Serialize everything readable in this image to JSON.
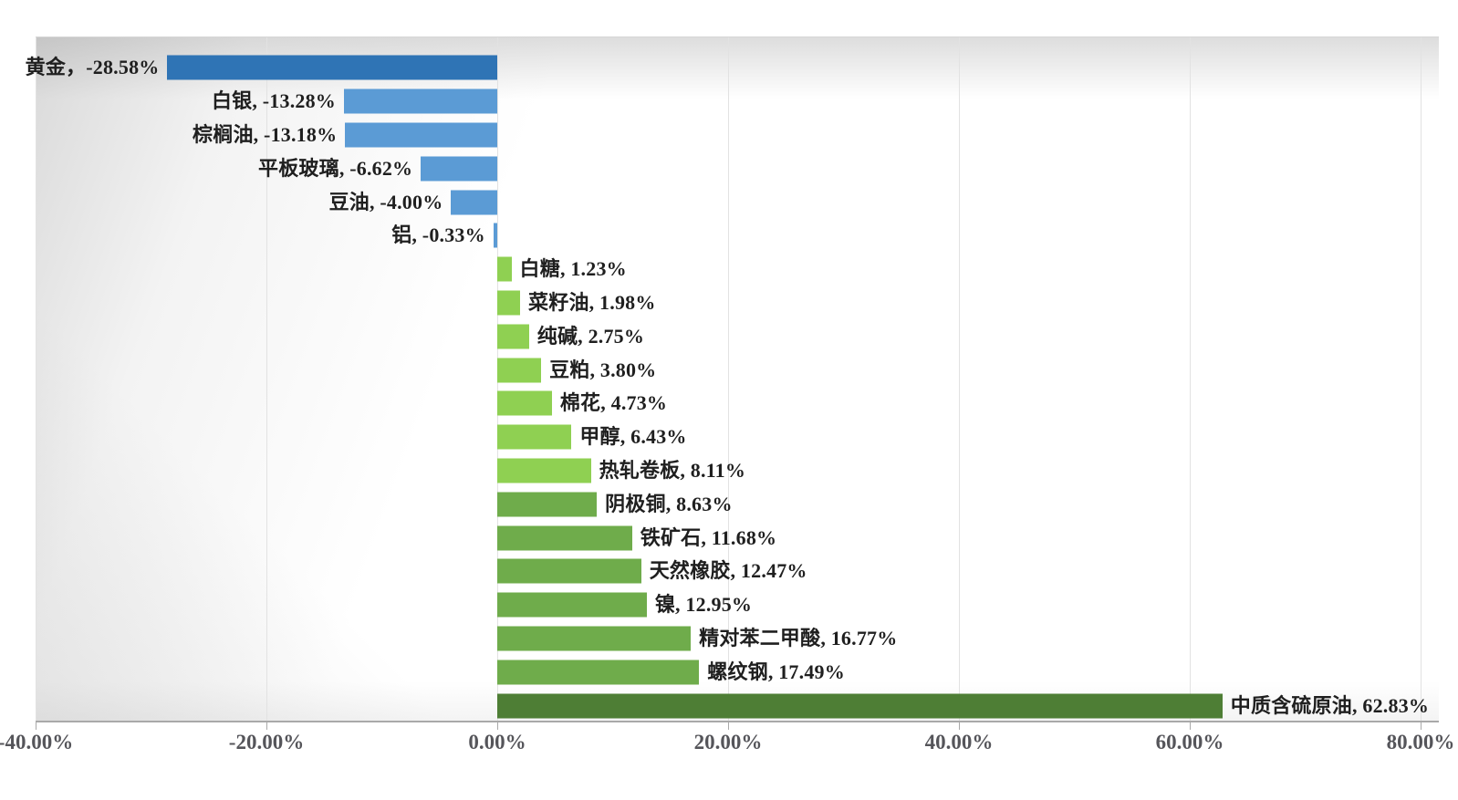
{
  "chart_data": {
    "type": "bar",
    "orientation": "horizontal",
    "title": "",
    "xlabel": "",
    "ylabel": "",
    "value_unit": "%",
    "x_axis": {
      "min": -40,
      "max": 80,
      "tick_step": 20,
      "tick_labels": [
        "-40.00%",
        "-20.00%",
        "0.00%",
        "20.00%",
        "40.00%",
        "60.00%",
        "80.00%"
      ],
      "gridlines": true
    },
    "legend": "none",
    "bars": [
      {
        "name": "黄金",
        "value": -28.58,
        "label": "黄金，-28.58%",
        "color": "#2F74B5"
      },
      {
        "name": "白银",
        "value": -13.28,
        "label": "白银, -13.28%",
        "color": "#5B9BD5"
      },
      {
        "name": "棕榈油",
        "value": -13.18,
        "label": "棕榈油, -13.18%",
        "color": "#5B9BD5"
      },
      {
        "name": "平板玻璃",
        "value": -6.62,
        "label": "平板玻璃, -6.62%",
        "color": "#5B9BD5"
      },
      {
        "name": "豆油",
        "value": -4.0,
        "label": "豆油, -4.00%",
        "color": "#5B9BD5"
      },
      {
        "name": "铝",
        "value": -0.33,
        "label": "铝, -0.33%",
        "color": "#5B9BD5"
      },
      {
        "name": "白糖",
        "value": 1.23,
        "label": "白糖, 1.23%",
        "color": "#8FD052"
      },
      {
        "name": "菜籽油",
        "value": 1.98,
        "label": "菜籽油, 1.98%",
        "color": "#8FD052"
      },
      {
        "name": "纯碱",
        "value": 2.75,
        "label": "纯碱, 2.75%",
        "color": "#8FD052"
      },
      {
        "name": "豆粕",
        "value": 3.8,
        "label": "豆粕, 3.80%",
        "color": "#8FD052"
      },
      {
        "name": "棉花",
        "value": 4.73,
        "label": "棉花, 4.73%",
        "color": "#8FD052"
      },
      {
        "name": "甲醇",
        "value": 6.43,
        "label": "甲醇, 6.43%",
        "color": "#8FD052"
      },
      {
        "name": "热轧卷板",
        "value": 8.11,
        "label": "热轧卷板, 8.11%",
        "color": "#8FD052"
      },
      {
        "name": "阴极铜",
        "value": 8.63,
        "label": "阴极铜, 8.63%",
        "color": "#6FAC4B"
      },
      {
        "name": "铁矿石",
        "value": 11.68,
        "label": "铁矿石, 11.68%",
        "color": "#6FAC4B"
      },
      {
        "name": "天然橡胶",
        "value": 12.47,
        "label": "天然橡胶, 12.47%",
        "color": "#6FAC4B"
      },
      {
        "name": "镍",
        "value": 12.95,
        "label": "镍, 12.95%",
        "color": "#6FAC4B"
      },
      {
        "name": "精对苯二甲酸",
        "value": 16.77,
        "label": "精对苯二甲酸, 16.77%",
        "color": "#6FAC4B"
      },
      {
        "name": "螺纹钢",
        "value": 17.49,
        "label": "螺纹钢, 17.49%",
        "color": "#6FAC4B"
      },
      {
        "name": "中质含硫原油",
        "value": 62.83,
        "label": "中质含硫原油, 62.83%",
        "color": "#4E7E35"
      }
    ],
    "palette": {
      "negative_emphasis": "#2F74B5",
      "negative": "#5B9BD5",
      "positive_light": "#8FD052",
      "positive": "#6FAC4B",
      "positive_emphasis": "#4E7E35"
    },
    "label_color": "#1F1F1F",
    "axis_label_color": "#55555A",
    "gridline_color": "#E2E2E2",
    "axis_line_color": "#A9A9A9"
  }
}
